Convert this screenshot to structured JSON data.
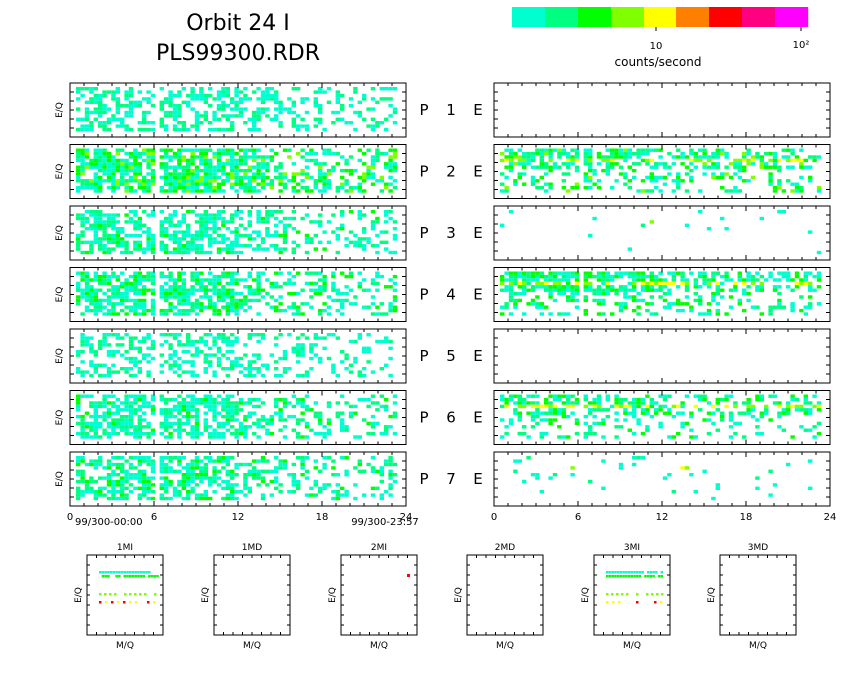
{
  "title_line1": "Orbit 24 I",
  "title_line2": "PLS99300.RDR",
  "colorbar": {
    "label": "counts/second",
    "tick_labels": [
      "10",
      "10²"
    ],
    "colors": [
      "#00ffd0",
      "#00ff80",
      "#00ff00",
      "#80ff00",
      "#ffff00",
      "#ff8000",
      "#ff0000",
      "#ff0080",
      "#ff00ff"
    ]
  },
  "chart_data": [
    {
      "type": "heatmap",
      "title": "",
      "description_panels": "Left column: P 1–7 E/Q spectrograms; right column: E spectrograms",
      "ylabel": "E/Q",
      "x_ticks": [
        "0",
        "6",
        "12",
        "18",
        "24"
      ],
      "xlim": [
        0,
        24
      ],
      "x_start_label": "99/300-00:00",
      "x_end_label": "99/300-23:57",
      "rows": [
        {
          "label_p": "P",
          "num": "1",
          "label_e": "E",
          "left_density": 0.55,
          "left_intensity": 0.2,
          "right_density": 0.0,
          "right_intensity": 0.0
        },
        {
          "label_p": "P",
          "num": "2",
          "label_e": "E",
          "left_density": 0.8,
          "left_intensity": 0.5,
          "right_density": 0.55,
          "right_intensity": 0.45
        },
        {
          "label_p": "P",
          "num": "3",
          "label_e": "E",
          "left_density": 0.6,
          "left_intensity": 0.25,
          "right_density": 0.02,
          "right_intensity": 0.0
        },
        {
          "label_p": "P",
          "num": "4",
          "label_e": "E",
          "left_density": 0.65,
          "left_intensity": 0.35,
          "right_density": 0.6,
          "right_intensity": 0.4
        },
        {
          "label_p": "P",
          "num": "5",
          "label_e": "E",
          "left_density": 0.45,
          "left_intensity": 0.15,
          "right_density": 0.0,
          "right_intensity": 0.0
        },
        {
          "label_p": "P",
          "num": "6",
          "label_e": "E",
          "left_density": 0.6,
          "left_intensity": 0.25,
          "right_density": 0.45,
          "right_intensity": 0.4
        },
        {
          "label_p": "P",
          "num": "7",
          "label_e": "E",
          "left_density": 0.6,
          "left_intensity": 0.3,
          "right_density": 0.05,
          "right_intensity": 0.05
        }
      ]
    },
    {
      "type": "scatter",
      "title": "",
      "xlabel": "M/Q",
      "ylabel": "E/Q",
      "panels": [
        {
          "name": "1MI",
          "has_data": true
        },
        {
          "name": "1MD",
          "has_data": false
        },
        {
          "name": "2MI",
          "has_data": true
        },
        {
          "name": "2MD",
          "has_data": false
        },
        {
          "name": "3MI",
          "has_data": true
        },
        {
          "name": "3MD",
          "has_data": false
        }
      ]
    }
  ]
}
